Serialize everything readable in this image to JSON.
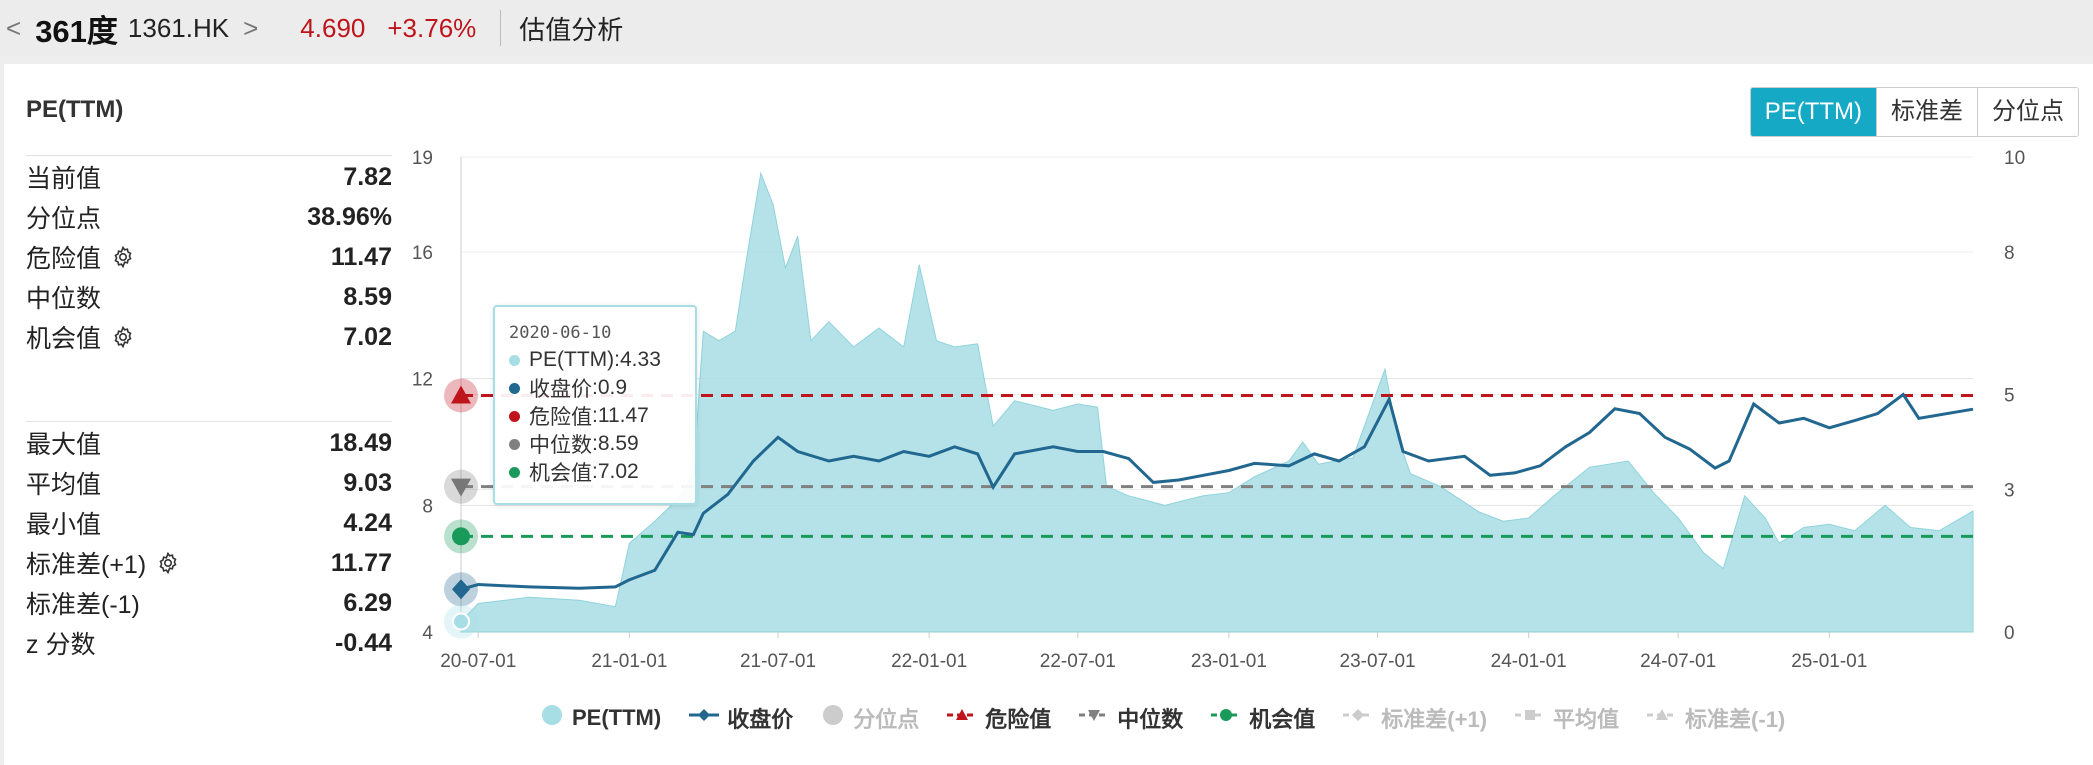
{
  "header": {
    "nav_left": "<",
    "stock_name": "361度",
    "stock_code": "1361.HK",
    "nav_right": ">",
    "price": "4.690",
    "change": "+3.76%",
    "section": "估值分析"
  },
  "panel": {
    "title": "PE(TTM)",
    "stats_top": [
      {
        "label": "当前值",
        "value": "7.82",
        "gear": false
      },
      {
        "label": "分位点",
        "value": "38.96%",
        "gear": false
      },
      {
        "label": "危险值",
        "value": "11.47",
        "gear": true
      },
      {
        "label": "中位数",
        "value": "8.59",
        "gear": false
      },
      {
        "label": "机会值",
        "value": "7.02",
        "gear": true
      }
    ],
    "stats_bottom": [
      {
        "label": "最大值",
        "value": "18.49",
        "gear": false
      },
      {
        "label": "平均值",
        "value": "9.03",
        "gear": false
      },
      {
        "label": "最小值",
        "value": "4.24",
        "gear": false
      },
      {
        "label": "标准差(+1)",
        "value": "11.77",
        "gear": true
      },
      {
        "label": "标准差(-1)",
        "value": "6.29",
        "gear": false
      },
      {
        "label": "z 分数",
        "value": "-0.44",
        "gear": false
      }
    ]
  },
  "tabs": [
    {
      "label": "PE(TTM)",
      "active": true
    },
    {
      "label": "标准差",
      "active": false
    },
    {
      "label": "分位点",
      "active": false
    }
  ],
  "tooltip": {
    "date": "2020-06-10",
    "rows": [
      {
        "label": "PE(TTM)",
        "value": "4.33",
        "color": "#a7dde4"
      },
      {
        "label": "收盘价",
        "value": "0.9",
        "color": "#21678f"
      },
      {
        "label": "危险值",
        "value": "11.47",
        "color": "#c0141d"
      },
      {
        "label": "中位数",
        "value": "8.59",
        "color": "#808080"
      },
      {
        "label": "机会值",
        "value": "7.02",
        "color": "#1a9a5a"
      }
    ]
  },
  "legend": [
    {
      "label": "PE(TTM)",
      "symbol": "circle",
      "color": "#a7dde4",
      "enabled": true
    },
    {
      "label": "收盘价",
      "symbol": "line-diamond",
      "color": "#21678f",
      "enabled": true
    },
    {
      "label": "分位点",
      "symbol": "circle",
      "color": "#cccccc",
      "enabled": false
    },
    {
      "label": "危险值",
      "symbol": "dash-triangle",
      "color": "#c0141d",
      "enabled": true
    },
    {
      "label": "中位数",
      "symbol": "dash-triangle-down",
      "color": "#808080",
      "enabled": true
    },
    {
      "label": "机会值",
      "symbol": "dash-circle",
      "color": "#1a9a5a",
      "enabled": true
    },
    {
      "label": "标准差(+1)",
      "symbol": "dash-diamond",
      "color": "#cccccc",
      "enabled": false
    },
    {
      "label": "平均值",
      "symbol": "dash-square",
      "color": "#cccccc",
      "enabled": false
    },
    {
      "label": "标准差(-1)",
      "symbol": "dash-triangle",
      "color": "#cccccc",
      "enabled": false
    }
  ],
  "chart_data": {
    "type": "area",
    "x_ticks": [
      "20-07-01",
      "21-01-01",
      "21-07-01",
      "22-01-01",
      "22-07-01",
      "23-01-01",
      "23-07-01",
      "24-01-01",
      "24-07-01",
      "25-01-01"
    ],
    "x_tick_dates": [
      "2020-07-01",
      "2021-01-01",
      "2021-07-01",
      "2022-01-01",
      "2022-07-01",
      "2023-01-01",
      "2023-07-01",
      "2024-01-01",
      "2024-07-01",
      "2025-01-01"
    ],
    "x_range": [
      "2020-06-10",
      "2025-06-25"
    ],
    "y_left_ticks": [
      "4",
      "8",
      "12",
      "16",
      "19"
    ],
    "y_left_range": [
      4,
      19
    ],
    "y_right_ticks": [
      "0",
      "3",
      "5",
      "8",
      "10"
    ],
    "y_right_range": [
      0,
      10
    ],
    "hlines": [
      {
        "name": "危险值",
        "value": 11.47,
        "color": "#c0141d"
      },
      {
        "name": "中位数",
        "value": 8.59,
        "color": "#808080"
      },
      {
        "name": "机会值",
        "value": 7.02,
        "color": "#1a9a5a"
      }
    ],
    "series": [
      {
        "name": "PE(TTM)",
        "axis": "left",
        "color": "#a7dde4",
        "points": [
          [
            "2020-06-10",
            4.33
          ],
          [
            "2020-07-01",
            4.9
          ],
          [
            "2020-09-01",
            5.1
          ],
          [
            "2020-11-01",
            5.0
          ],
          [
            "2020-12-15",
            4.8
          ],
          [
            "2021-01-01",
            6.8
          ],
          [
            "2021-02-01",
            7.5
          ],
          [
            "2021-03-01",
            8.2
          ],
          [
            "2021-03-20",
            9.0
          ],
          [
            "2021-04-01",
            13.5
          ],
          [
            "2021-04-20",
            13.2
          ],
          [
            "2021-05-10",
            13.5
          ],
          [
            "2021-05-25",
            16.0
          ],
          [
            "2021-06-10",
            18.49
          ],
          [
            "2021-06-25",
            17.5
          ],
          [
            "2021-07-10",
            15.5
          ],
          [
            "2021-07-25",
            16.5
          ],
          [
            "2021-08-10",
            13.2
          ],
          [
            "2021-09-01",
            13.8
          ],
          [
            "2021-10-01",
            13.0
          ],
          [
            "2021-11-01",
            13.6
          ],
          [
            "2021-12-01",
            13.0
          ],
          [
            "2021-12-20",
            15.6
          ],
          [
            "2022-01-10",
            13.2
          ],
          [
            "2022-02-01",
            13.0
          ],
          [
            "2022-03-01",
            13.1
          ],
          [
            "2022-03-20",
            10.5
          ],
          [
            "2022-04-15",
            11.3
          ],
          [
            "2022-06-01",
            11.0
          ],
          [
            "2022-07-01",
            11.2
          ],
          [
            "2022-07-25",
            11.1
          ],
          [
            "2022-08-05",
            8.6
          ],
          [
            "2022-09-01",
            8.3
          ],
          [
            "2022-10-15",
            8.0
          ],
          [
            "2022-12-01",
            8.3
          ],
          [
            "2023-01-01",
            8.4
          ],
          [
            "2023-02-01",
            8.9
          ],
          [
            "2023-03-15",
            9.4
          ],
          [
            "2023-04-01",
            10.0
          ],
          [
            "2023-04-20",
            9.3
          ],
          [
            "2023-06-01",
            9.5
          ],
          [
            "2023-07-10",
            12.3
          ],
          [
            "2023-07-25",
            10.2
          ],
          [
            "2023-08-10",
            9.0
          ],
          [
            "2023-09-15",
            8.6
          ],
          [
            "2023-11-01",
            7.8
          ],
          [
            "2023-12-01",
            7.5
          ],
          [
            "2024-01-01",
            7.6
          ],
          [
            "2024-02-01",
            8.3
          ],
          [
            "2024-03-15",
            9.2
          ],
          [
            "2024-05-01",
            9.4
          ],
          [
            "2024-06-01",
            8.4
          ],
          [
            "2024-07-01",
            7.6
          ],
          [
            "2024-08-01",
            6.5
          ],
          [
            "2024-08-25",
            6.0
          ],
          [
            "2024-09-20",
            8.3
          ],
          [
            "2024-10-15",
            7.6
          ],
          [
            "2024-11-01",
            6.8
          ],
          [
            "2024-12-01",
            7.3
          ],
          [
            "2025-01-01",
            7.4
          ],
          [
            "2025-02-01",
            7.2
          ],
          [
            "2025-03-10",
            8.0
          ],
          [
            "2025-04-10",
            7.3
          ],
          [
            "2025-05-15",
            7.2
          ],
          [
            "2025-06-25",
            7.82
          ]
        ]
      },
      {
        "name": "收盘价",
        "axis": "right",
        "color": "#21678f",
        "points": [
          [
            "2020-06-10",
            0.9
          ],
          [
            "2020-07-01",
            1.0
          ],
          [
            "2020-09-01",
            0.95
          ],
          [
            "2020-11-01",
            0.92
          ],
          [
            "2020-12-15",
            0.95
          ],
          [
            "2021-01-01",
            1.1
          ],
          [
            "2021-02-01",
            1.3
          ],
          [
            "2021-03-01",
            2.1
          ],
          [
            "2021-03-20",
            2.05
          ],
          [
            "2021-04-01",
            2.5
          ],
          [
            "2021-05-01",
            2.9
          ],
          [
            "2021-06-01",
            3.6
          ],
          [
            "2021-07-01",
            4.1
          ],
          [
            "2021-07-25",
            3.8
          ],
          [
            "2021-09-01",
            3.6
          ],
          [
            "2021-10-01",
            3.7
          ],
          [
            "2021-11-01",
            3.6
          ],
          [
            "2021-12-01",
            3.8
          ],
          [
            "2022-01-01",
            3.7
          ],
          [
            "2022-02-01",
            3.9
          ],
          [
            "2022-03-01",
            3.75
          ],
          [
            "2022-03-20",
            3.05
          ],
          [
            "2022-04-15",
            3.75
          ],
          [
            "2022-06-01",
            3.9
          ],
          [
            "2022-07-01",
            3.8
          ],
          [
            "2022-08-01",
            3.8
          ],
          [
            "2022-09-01",
            3.65
          ],
          [
            "2022-10-01",
            3.15
          ],
          [
            "2022-11-01",
            3.2
          ],
          [
            "2022-12-01",
            3.3
          ],
          [
            "2023-01-01",
            3.4
          ],
          [
            "2023-02-01",
            3.55
          ],
          [
            "2023-03-15",
            3.5
          ],
          [
            "2023-04-15",
            3.75
          ],
          [
            "2023-05-15",
            3.6
          ],
          [
            "2023-06-15",
            3.9
          ],
          [
            "2023-07-15",
            4.9
          ],
          [
            "2023-08-01",
            3.8
          ],
          [
            "2023-09-01",
            3.6
          ],
          [
            "2023-10-15",
            3.7
          ],
          [
            "2023-11-15",
            3.3
          ],
          [
            "2023-12-15",
            3.35
          ],
          [
            "2024-01-15",
            3.5
          ],
          [
            "2024-02-15",
            3.9
          ],
          [
            "2024-03-15",
            4.2
          ],
          [
            "2024-04-15",
            4.7
          ],
          [
            "2024-05-15",
            4.6
          ],
          [
            "2024-06-15",
            4.1
          ],
          [
            "2024-07-15",
            3.85
          ],
          [
            "2024-08-15",
            3.45
          ],
          [
            "2024-09-01",
            3.6
          ],
          [
            "2024-10-01",
            4.8
          ],
          [
            "2024-11-01",
            4.4
          ],
          [
            "2024-12-01",
            4.5
          ],
          [
            "2025-01-01",
            4.3
          ],
          [
            "2025-02-01",
            4.45
          ],
          [
            "2025-03-01",
            4.6
          ],
          [
            "2025-04-01",
            5.0
          ],
          [
            "2025-04-20",
            4.5
          ],
          [
            "2025-06-25",
            4.69
          ]
        ]
      }
    ]
  }
}
